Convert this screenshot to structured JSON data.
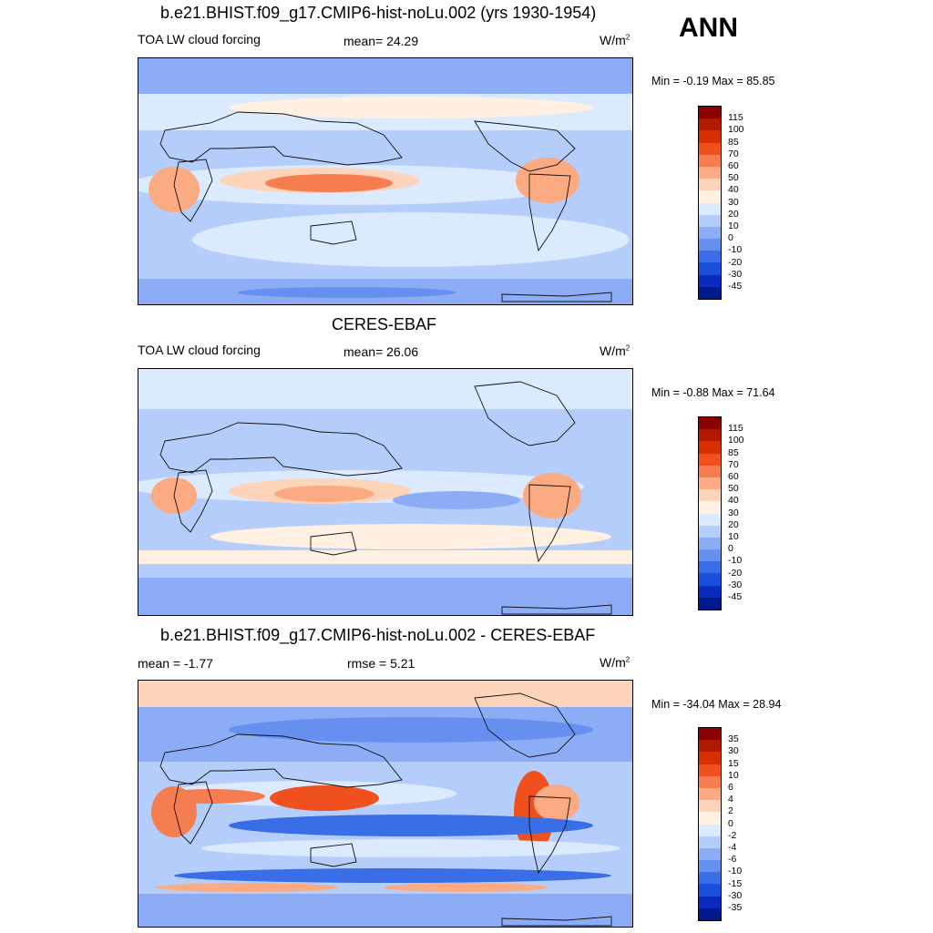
{
  "season": "ANN",
  "panels": [
    {
      "title": "b.e21.BHIST.f09_g17.CMIP6-hist-noLu.002 (yrs 1930-1954)",
      "left_label": "TOA LW cloud forcing",
      "center_label": "mean=  24.29",
      "units": "W/m",
      "units_exp": "2",
      "minmax": "Min =  -0.19 Max =  85.85"
    },
    {
      "title": "CERES-EBAF",
      "left_label": "TOA LW cloud forcing",
      "center_label": "mean=  26.06",
      "units": "W/m",
      "units_exp": "2",
      "minmax": "Min =  -0.88 Max =  71.64"
    },
    {
      "title": "b.e21.BHIST.f09_g17.CMIP6-hist-noLu.002 - CERES-EBAF",
      "left_label": "mean =  -1.77",
      "center_label": "rmse =   5.21",
      "units": "W/m",
      "units_exp": "2",
      "minmax": "Min = -34.04 Max =  28.94"
    }
  ],
  "colorbars": {
    "abs_levels": [
      "115",
      "100",
      "85",
      "70",
      "60",
      "50",
      "40",
      "30",
      "20",
      "10",
      "0",
      "-10",
      "-20",
      "-30",
      "-45"
    ],
    "abs_colors": [
      "#8b0000",
      "#b21a00",
      "#d73000",
      "#f0501e",
      "#f57d50",
      "#fbaa82",
      "#fdd4b9",
      "#fff0e1",
      "#dceaff",
      "#b5cdfa",
      "#8cadf5",
      "#6690f0",
      "#3a6ee6",
      "#1a4fdc",
      "#0a2cbe",
      "#001a8c"
    ],
    "diff_levels": [
      "35",
      "30",
      "15",
      "10",
      "6",
      "4",
      "2",
      "0",
      "-2",
      "-4",
      "-6",
      "-10",
      "-15",
      "-30",
      "-35"
    ],
    "diff_colors": [
      "#8b0000",
      "#b21a00",
      "#d73000",
      "#f0501e",
      "#f57d50",
      "#fbaa82",
      "#fdd4b9",
      "#fff0e1",
      "#dceaff",
      "#b5cdfa",
      "#8cadf5",
      "#6690f0",
      "#3a6ee6",
      "#1a4fdc",
      "#0a2cbe",
      "#001a8c"
    ]
  }
}
